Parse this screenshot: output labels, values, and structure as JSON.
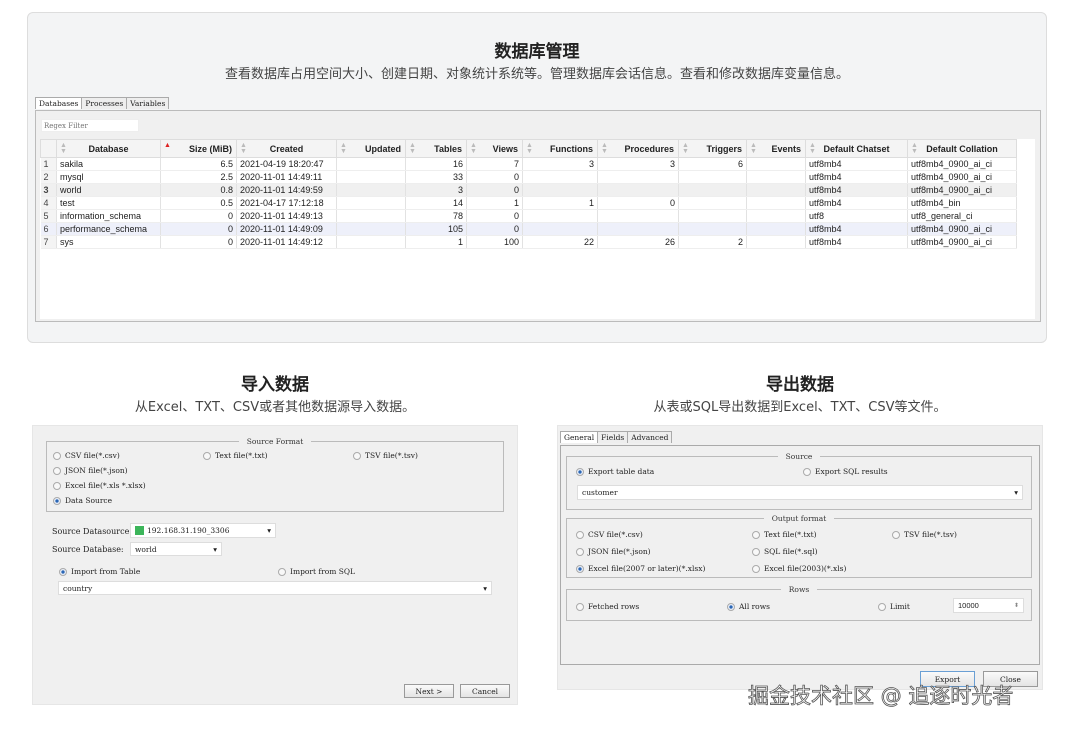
{
  "top": {
    "title": "数据库管理",
    "subtitle": "查看数据库占用空间大小、创建日期、对象统计系统等。管理数据库会话信息。查看和修改数据库变量信息。",
    "tabs": [
      "Databases",
      "Processes",
      "Variables"
    ],
    "filter_placeholder": "Regex Filter",
    "columns": [
      "Database",
      "Size (MiB)",
      "Created",
      "Updated",
      "Tables",
      "Views",
      "Functions",
      "Procedures",
      "Triggers",
      "Events",
      "Default Chatset",
      "Default Collation"
    ],
    "rows": [
      [
        "1",
        "sakila",
        "6.5",
        "2021-04-19 18:20:47",
        "",
        "16",
        "7",
        "3",
        "3",
        "6",
        "",
        "utf8mb4",
        "utf8mb4_0900_ai_ci"
      ],
      [
        "2",
        "mysql",
        "2.5",
        "2020-11-01 14:49:11",
        "",
        "33",
        "0",
        "",
        "",
        "",
        "",
        "utf8mb4",
        "utf8mb4_0900_ai_ci"
      ],
      [
        "3",
        "world",
        "0.8",
        "2020-11-01 14:49:59",
        "",
        "3",
        "0",
        "",
        "",
        "",
        "",
        "utf8mb4",
        "utf8mb4_0900_ai_ci"
      ],
      [
        "4",
        "test",
        "0.5",
        "2021-04-17 17:12:18",
        "",
        "14",
        "1",
        "1",
        "0",
        "",
        "",
        "utf8mb4",
        "utf8mb4_bin"
      ],
      [
        "5",
        "information_schema",
        "0",
        "2020-11-01 14:49:13",
        "",
        "78",
        "0",
        "",
        "",
        "",
        "",
        "utf8",
        "utf8_general_ci"
      ],
      [
        "6",
        "performance_schema",
        "0",
        "2020-11-01 14:49:09",
        "",
        "105",
        "0",
        "",
        "",
        "",
        "",
        "utf8mb4",
        "utf8mb4_0900_ai_ci"
      ],
      [
        "7",
        "sys",
        "0",
        "2020-11-01 14:49:12",
        "",
        "1",
        "100",
        "22",
        "26",
        "2",
        "",
        "utf8mb4",
        "utf8mb4_0900_ai_ci"
      ]
    ]
  },
  "import": {
    "title": "导入数据",
    "subtitle": "从Excel、TXT、CSV或者其他数据源导入数据。",
    "source_format": "Source Format",
    "formats": [
      "CSV file(*.csv)",
      "Text file(*.txt)",
      "TSV file(*.tsv)",
      "JSON file(*.json)",
      "Excel file(*.xls *.xlsx)",
      "Data Source"
    ],
    "datasource_label": "Source Datasource:",
    "datasource_value": "192.168.31.190_3306",
    "database_label": "Source Database:",
    "database_value": "world",
    "from_table": "Import from Table",
    "from_sql": "Import from SQL",
    "table_value": "country",
    "next": "Next >",
    "cancel": "Cancel"
  },
  "export": {
    "title": "导出数据",
    "subtitle": "从表或SQL导出数据到Excel、TXT、CSV等文件。",
    "tabs": [
      "General",
      "Fields",
      "Advanced"
    ],
    "source_legend": "Source",
    "export_table": "Export table data",
    "export_sql": "Export SQL results",
    "table_value": "customer",
    "output_legend": "Output format",
    "formats": [
      "CSV file(*.csv)",
      "Text file(*.txt)",
      "TSV file(*.tsv)",
      "JSON file(*.json)",
      "SQL file(*.sql)",
      "Excel file(2007 or later)(*.xlsx)",
      "Excel file(2003)(*.xls)"
    ],
    "rows_legend": "Rows",
    "fetched": "Fetched rows",
    "all": "All rows",
    "limit": "Limit",
    "limit_value": "10000",
    "export_btn": "Export",
    "close_btn": "Close"
  },
  "watermark": "掘金技术社区 @ 追逐时光者"
}
